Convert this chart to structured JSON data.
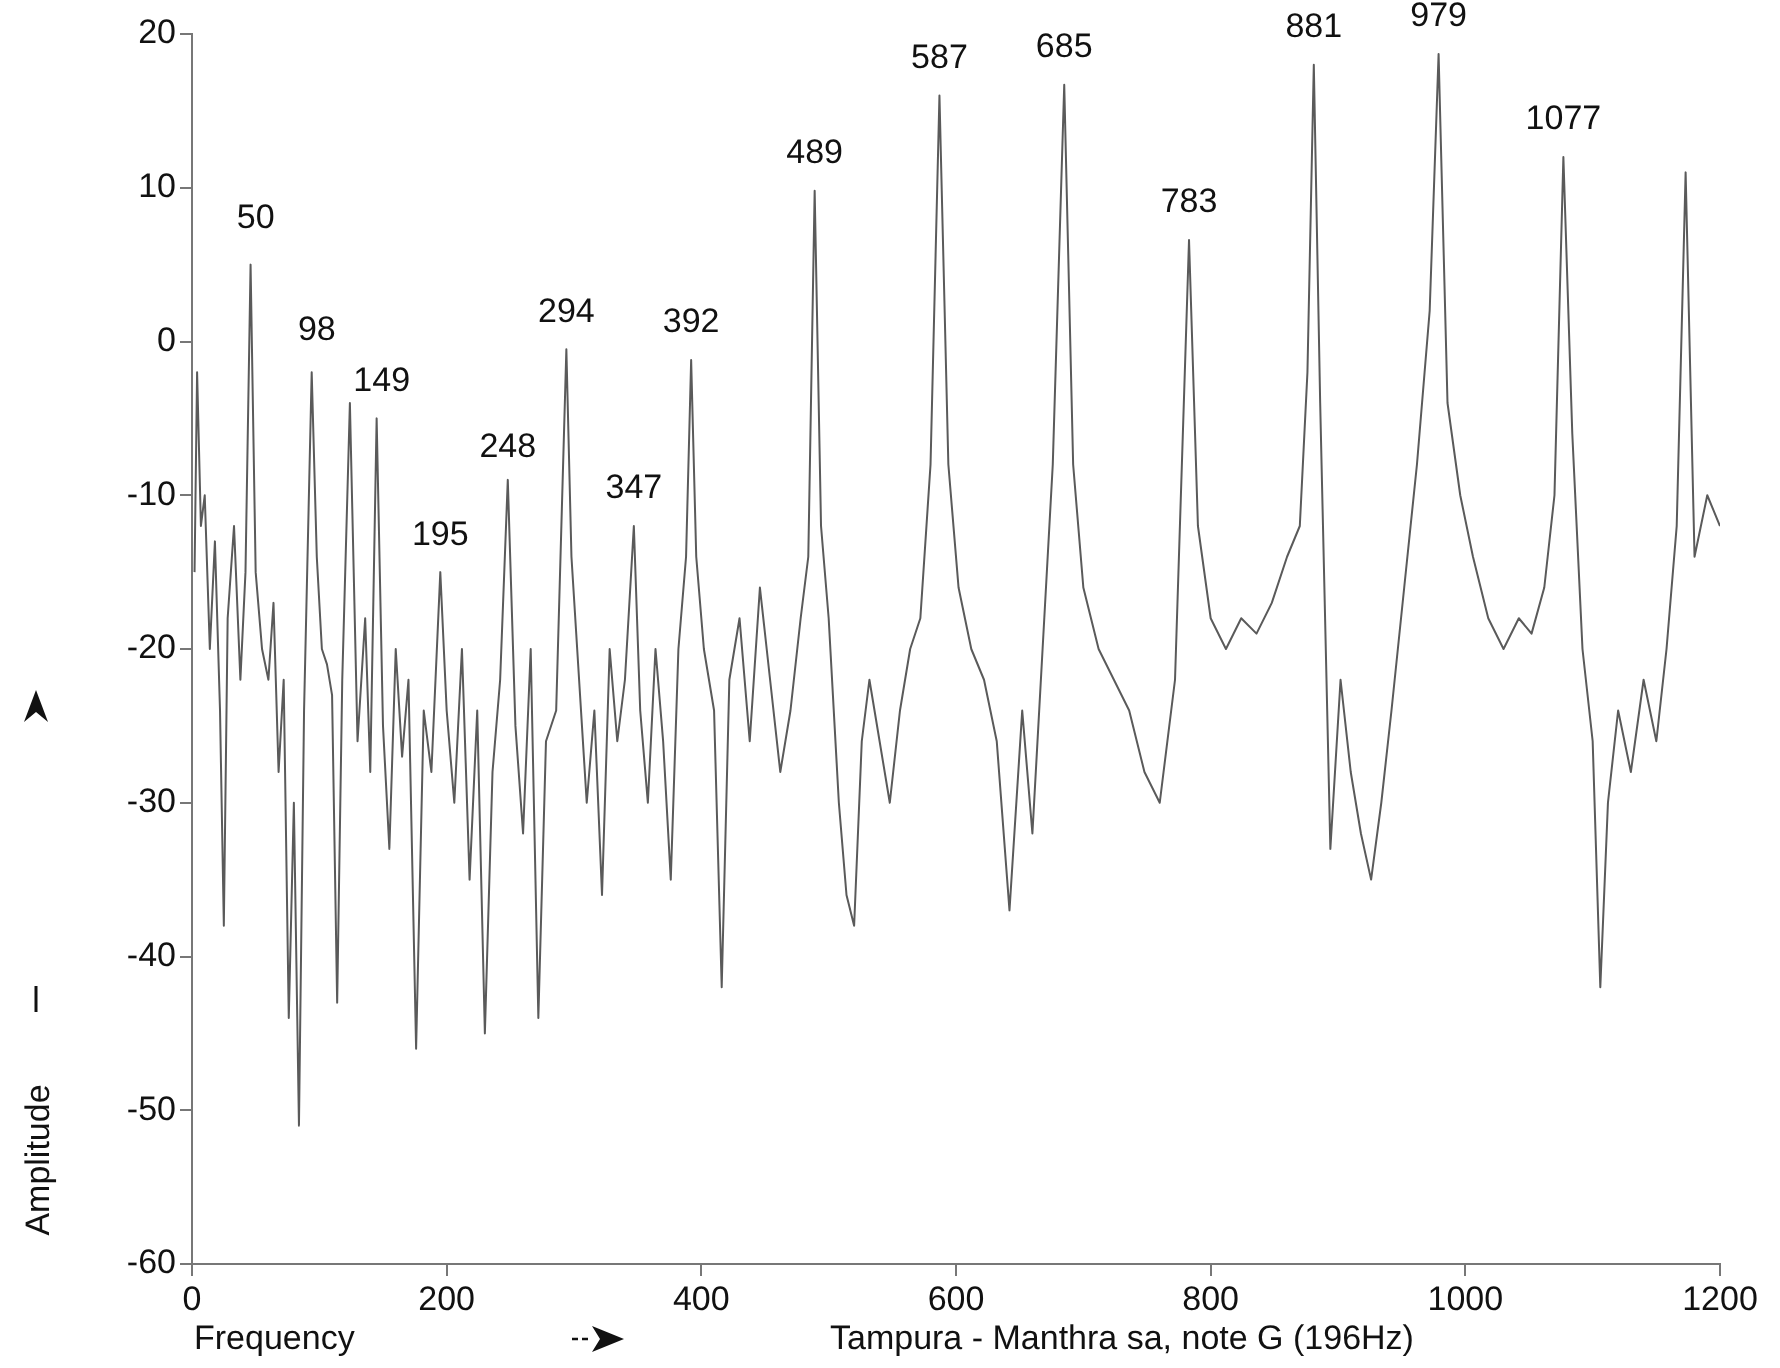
{
  "chart_data": {
    "type": "line",
    "xlabel": "Frequency",
    "ylabel": "Amplitude",
    "xlim": [
      0,
      1200
    ],
    "xticks": [
      0,
      200,
      400,
      600,
      800,
      1000,
      1200
    ],
    "ylim": [
      -60,
      20
    ],
    "yticks": [
      -60,
      -50,
      -40,
      -30,
      -20,
      -10,
      0,
      10,
      20
    ],
    "grid": false,
    "legend": false,
    "marker": "none",
    "line_style": "solid",
    "series": [
      {
        "color": "#5a5a5a",
        "x": [
          2,
          4,
          7,
          10,
          14,
          18,
          22,
          25,
          28,
          33,
          38,
          42,
          46,
          50,
          55,
          60,
          64,
          68,
          72,
          76,
          80,
          84,
          88,
          94,
          98,
          102,
          106,
          110,
          114,
          118,
          124,
          130,
          136,
          140,
          145,
          150,
          155,
          160,
          165,
          170,
          176,
          182,
          188,
          195,
          200,
          206,
          212,
          218,
          224,
          230,
          236,
          242,
          248,
          254,
          260,
          266,
          272,
          278,
          286,
          294,
          298,
          304,
          310,
          316,
          322,
          328,
          334,
          340,
          347,
          352,
          358,
          364,
          370,
          376,
          382,
          388,
          392,
          396,
          402,
          410,
          416,
          422,
          430,
          438,
          446,
          454,
          462,
          470,
          478,
          484,
          489,
          494,
          500,
          508,
          514,
          520,
          526,
          532,
          540,
          548,
          556,
          564,
          572,
          580,
          587,
          594,
          602,
          612,
          622,
          632,
          642,
          652,
          660,
          668,
          676,
          685,
          692,
          700,
          712,
          724,
          736,
          748,
          760,
          772,
          783,
          790,
          800,
          812,
          824,
          836,
          848,
          860,
          870,
          876,
          881,
          886,
          894,
          902,
          910,
          918,
          926,
          934,
          942,
          952,
          962,
          972,
          979,
          986,
          996,
          1006,
          1018,
          1030,
          1042,
          1052,
          1062,
          1070,
          1077,
          1084,
          1092,
          1100,
          1106,
          1112,
          1120,
          1130,
          1140,
          1150,
          1158,
          1166,
          1173,
          1180,
          1190,
          1200
        ],
        "values": [
          -15,
          -2,
          -12,
          -10,
          -20,
          -13,
          -24,
          -38,
          -18,
          -12,
          -22,
          -15,
          5,
          -15,
          -20,
          -22,
          -17,
          -28,
          -22,
          -44,
          -30,
          -51,
          -24,
          -2,
          -14,
          -20,
          -21,
          -23,
          -43,
          -22,
          -4,
          -26,
          -18,
          -28,
          -5,
          -25,
          -33,
          -20,
          -27,
          -22,
          -46,
          -24,
          -28,
          -15,
          -24,
          -30,
          -20,
          -35,
          -24,
          -45,
          -28,
          -22,
          -9,
          -25,
          -32,
          -20,
          -44,
          -26,
          -24,
          -0.5,
          -14,
          -22,
          -30,
          -24,
          -36,
          -20,
          -26,
          -22,
          -12,
          -24,
          -30,
          -20,
          -26,
          -35,
          -20,
          -14,
          -1.2,
          -14,
          -20,
          -24,
          -42,
          -22,
          -18,
          -26,
          -16,
          -22,
          -28,
          -24,
          -18,
          -14,
          9.8,
          -12,
          -18,
          -30,
          -36,
          -38,
          -26,
          -22,
          -26,
          -30,
          -24,
          -20,
          -18,
          -8,
          16,
          -8,
          -16,
          -20,
          -22,
          -26,
          -37,
          -24,
          -32,
          -20,
          -8,
          16.7,
          -8,
          -16,
          -20,
          -22,
          -24,
          -28,
          -30,
          -22,
          6.6,
          -12,
          -18,
          -20,
          -18,
          -19,
          -17,
          -14,
          -12,
          -2,
          18,
          -4,
          -33,
          -22,
          -28,
          -32,
          -35,
          -30,
          -24,
          -16,
          -8,
          2,
          18.7,
          -4,
          -10,
          -14,
          -18,
          -20,
          -18,
          -19,
          -16,
          -10,
          12,
          -6,
          -20,
          -26,
          -42,
          -30,
          -24,
          -28,
          -22,
          -26,
          -20,
          -12,
          11,
          -14,
          -10,
          -12
        ]
      }
    ],
    "annotations": [
      {
        "text": "50",
        "x": 50,
        "y": 5.6
      },
      {
        "text": "98",
        "x": 98,
        "y": -1.7
      },
      {
        "text": "149",
        "x": 149,
        "y": -5
      },
      {
        "text": "195",
        "x": 195,
        "y": -15
      },
      {
        "text": "248",
        "x": 248,
        "y": -9.3
      },
      {
        "text": "294",
        "x": 294,
        "y": -0.5
      },
      {
        "text": "347",
        "x": 347,
        "y": -12
      },
      {
        "text": "392",
        "x": 392,
        "y": -1.2
      },
      {
        "text": "489",
        "x": 489,
        "y": 9.8
      },
      {
        "text": "587",
        "x": 587,
        "y": 16
      },
      {
        "text": "685",
        "x": 685,
        "y": 16.7
      },
      {
        "text": "783",
        "x": 783,
        "y": 6.6
      },
      {
        "text": "881",
        "x": 881,
        "y": 18
      },
      {
        "text": "979",
        "x": 979,
        "y": 18.7
      },
      {
        "text": "1077",
        "x": 1077,
        "y": 12
      },
      "Tampura - Manthra sa, note G (196Hz)"
    ]
  }
}
